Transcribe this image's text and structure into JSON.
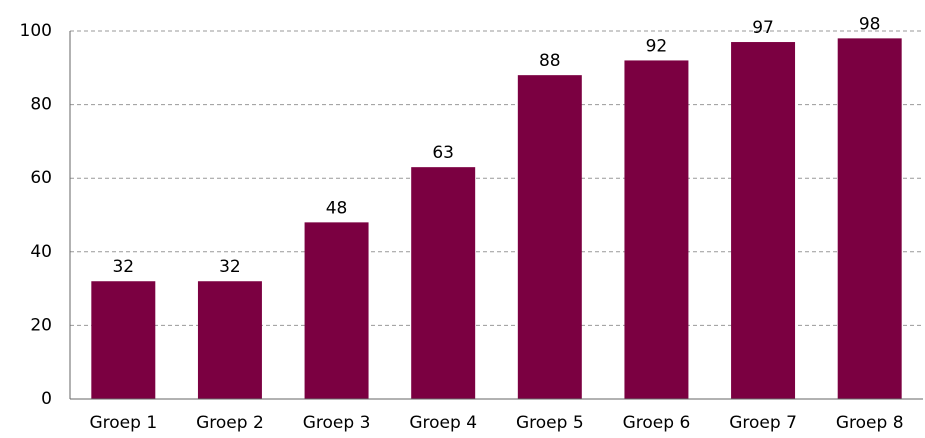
{
  "chart_data": {
    "type": "bar",
    "categories": [
      "Groep 1",
      "Groep 2",
      "Groep 3",
      "Groep 4",
      "Groep 5",
      "Groep 6",
      "Groep 7",
      "Groep 8"
    ],
    "values": [
      32,
      32,
      48,
      63,
      88,
      92,
      97,
      98
    ],
    "color": "#7b0041",
    "ylim": [
      0,
      100
    ],
    "yticks": [
      0,
      20,
      40,
      60,
      80,
      100
    ],
    "grid": true
  }
}
